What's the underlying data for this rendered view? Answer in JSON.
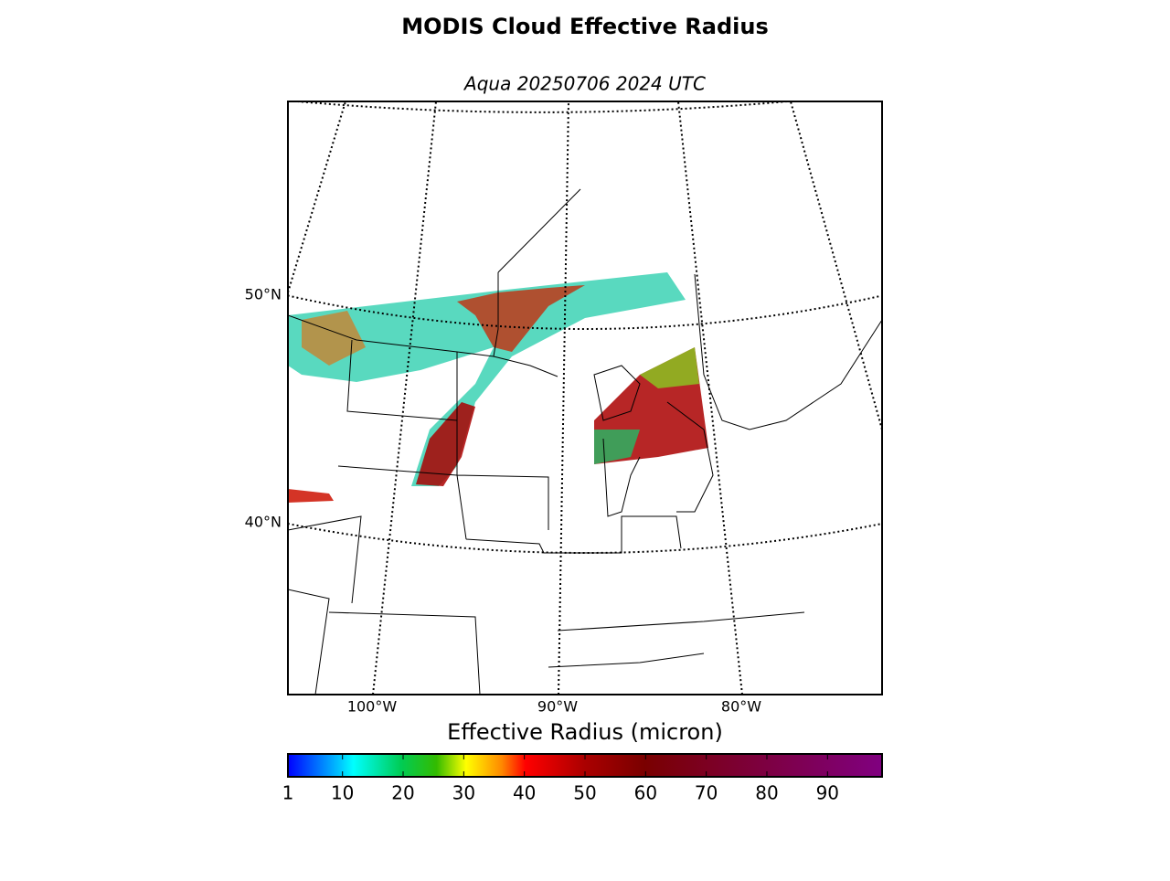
{
  "title": "MODIS Cloud Effective Radius",
  "subtitle": "Aqua 20250706 2024 UTC",
  "map": {
    "lat_labels": [
      "50°N",
      "40°N"
    ],
    "lon_labels": [
      "100°W",
      "90°W",
      "80°W"
    ]
  },
  "colorbar": {
    "label": "Effective Radius (micron)",
    "range": [
      1,
      99
    ],
    "ticks": [
      1,
      10,
      20,
      30,
      40,
      50,
      60,
      70,
      80,
      90
    ]
  }
}
